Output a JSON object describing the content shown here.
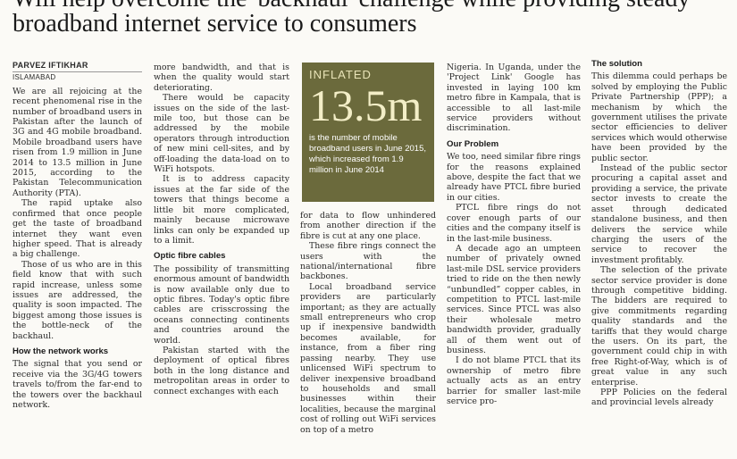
{
  "headline": "Will help overcome the 'backhaul' challenge while providing steady broadband internet service to consumers",
  "byline": "PARVEZ IFTIKHAR",
  "dateline": "ISLAMABAD",
  "infobox": {
    "label": "INFLATED",
    "value": "13.5m",
    "text": "is the number of mobile broadband users in June 2015, which increased from 1.9 million in June 2014",
    "background": "#6b6a3c"
  },
  "col1": {
    "p1": "We are all rejoicing at the recent phenomenal rise in the number of broadband users in Pakistan after the launch of 3G and 4G mobile broadband. Mobile broadband users have risen from 1.9 million in June 2014 to 13.5 million in June 2015, according to the Pakistan Telecommunication Authority (PTA).",
    "p2": "The rapid uptake also confirmed that once people get the taste of broadband internet they want even higher speed. That is already a big challenge.",
    "p3": "Those of us who are in this field know that with such rapid increase, unless some issues are addressed, the quality is soon impacted. The biggest among those issues is the bottle-neck of the backhaul.",
    "h1": "How the network works",
    "p4": "The signal that you send or receive via the 3G/4G towers travels to/from the far-end to the towers over the backhaul network."
  },
  "col2": {
    "p1": "more bandwidth, and that is when the quality would start deteriorating.",
    "p2": "There would be capacity issues on the side of the last-mile too, but those can be addressed by the mobile operators through introduction of new mini cell-sites, and by off-loading the data-load on to WiFi hotspots.",
    "p3": "It is to address capacity issues at the far side of the towers that things become a little bit more complicated, mainly because microwave links can only be expanded up to a limit.",
    "h1": "Optic fibre cables",
    "p4": "The possibility of transmitting enormous amount of bandwidth is now available only due to optic fibres. Today's optic fibre cables are crisscrossing the oceans connecting continents and countries around the world.",
    "p5": "Pakistan started with the deployment of optical fibres both in the long distance and metropolitan areas in order to connect exchanges with each"
  },
  "col3": {
    "p1": "for data to flow unhindered from another direction if the fibre is cut at any one place.",
    "p2": "These fibre rings connect the users with the national/international fibre backbones.",
    "p3": "Local broadband service providers are particularly important; as they are actually small entrepreneurs who crop up if inexpensive bandwidth becomes available, for instance, from a fiber ring passing nearby. They use unlicensed WiFi spectrum to deliver inexpensive broadband to households and small businesses within their localities, because the marginal cost of rolling out WiFi services on top of a metro"
  },
  "col4": {
    "p1": "Nigeria. In Uganda, under the 'Project Link' Google has invested in laying 100 km metro fibre in Kampala, that is accessible to all last-mile service providers without discrimination.",
    "h1": "Our Problem",
    "p2": "We too, need similar fibre rings for the reasons explained above, despite the fact that we already have PTCL fibre buried in our cities.",
    "p3": "PTCL fibre rings do not cover enough parts of our cities and the company itself is in the last-mile business.",
    "p4": "A decade ago an umpteen number of privately owned last-mile DSL service providers tried to ride on the then newly “unbundled” copper cables, in competition to PTCL last-mile services. Since PTCL was also their wholesale metro bandwidth provider, gradually all of them went out of business.",
    "p5": "I do not blame PTCL that its ownership of metro fibre actually acts as an entry barrier for smaller last-mile service pro-"
  },
  "col5": {
    "h1": "The solution",
    "p1": "This dilemma could perhaps be solved by employing the Public Private Partnership (PPP); a mechanism by which the government utilises the private sector efficiencies to deliver services which would otherwise have been provided by the public sector.",
    "p2": "Instead of the public sector procuring a capital asset and providing a service, the private sector invests to create the asset through dedicated standalone business, and then delivers the service while charging the users of the service to recover the investment profitably.",
    "p3": "The selection of the private sector service provider is done through competitive bidding. The bidders are required to give commitments regarding quality standards and the tariffs that they would charge the users. On its part, the government could chip in with free Right-of-Way, which is of great value in any such enterprise.",
    "p4": "PPP Policies on the federal and provincial levels already"
  }
}
